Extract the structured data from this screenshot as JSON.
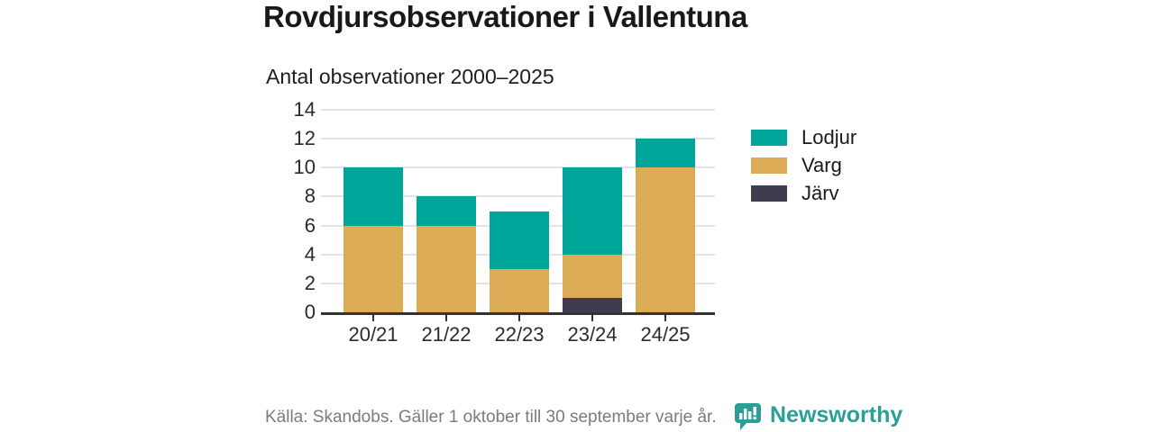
{
  "title": "Rovdjursobservationer i Vallentuna",
  "subtitle": "Antal observationer 2000–2025",
  "footer": {
    "source": "Källa: Skandobs. Gäller 1 oktober till 30 september varje år.",
    "brand": "Newsworthy"
  },
  "colors": {
    "lodjur": "#00a699",
    "varg": "#dbab55",
    "jarv": "#3f3c4d",
    "axis": "#333333",
    "grid": "#e3e3e3",
    "tick_text": "#2b2b2b",
    "title_text": "#191919",
    "source_text": "#7b7b7b",
    "brand_teal": "#2b9e98"
  },
  "chart_data": {
    "type": "bar",
    "stacked": true,
    "title": "Rovdjursobservationer i Vallentuna",
    "subtitle": "Antal observationer 2000–2025",
    "categories": [
      "20/21",
      "21/22",
      "22/23",
      "23/24",
      "24/25"
    ],
    "series": [
      {
        "name": "Lodjur",
        "color": "#00a699",
        "values": [
          4,
          2,
          4,
          6,
          2
        ]
      },
      {
        "name": "Varg",
        "color": "#dbab55",
        "values": [
          6,
          6,
          3,
          3,
          10
        ]
      },
      {
        "name": "Järv",
        "color": "#3f3c4d",
        "values": [
          0,
          0,
          0,
          1,
          0
        ]
      }
    ],
    "stack_order_bottom_to_top": [
      "Järv",
      "Varg",
      "Lodjur"
    ],
    "totals": [
      10,
      8,
      7,
      10,
      12
    ],
    "xlabel": "",
    "ylabel": "",
    "ylim": [
      0,
      14
    ],
    "yticks": [
      0,
      2,
      4,
      6,
      8,
      10,
      12,
      14
    ],
    "grid": true,
    "legend_position": "right"
  }
}
